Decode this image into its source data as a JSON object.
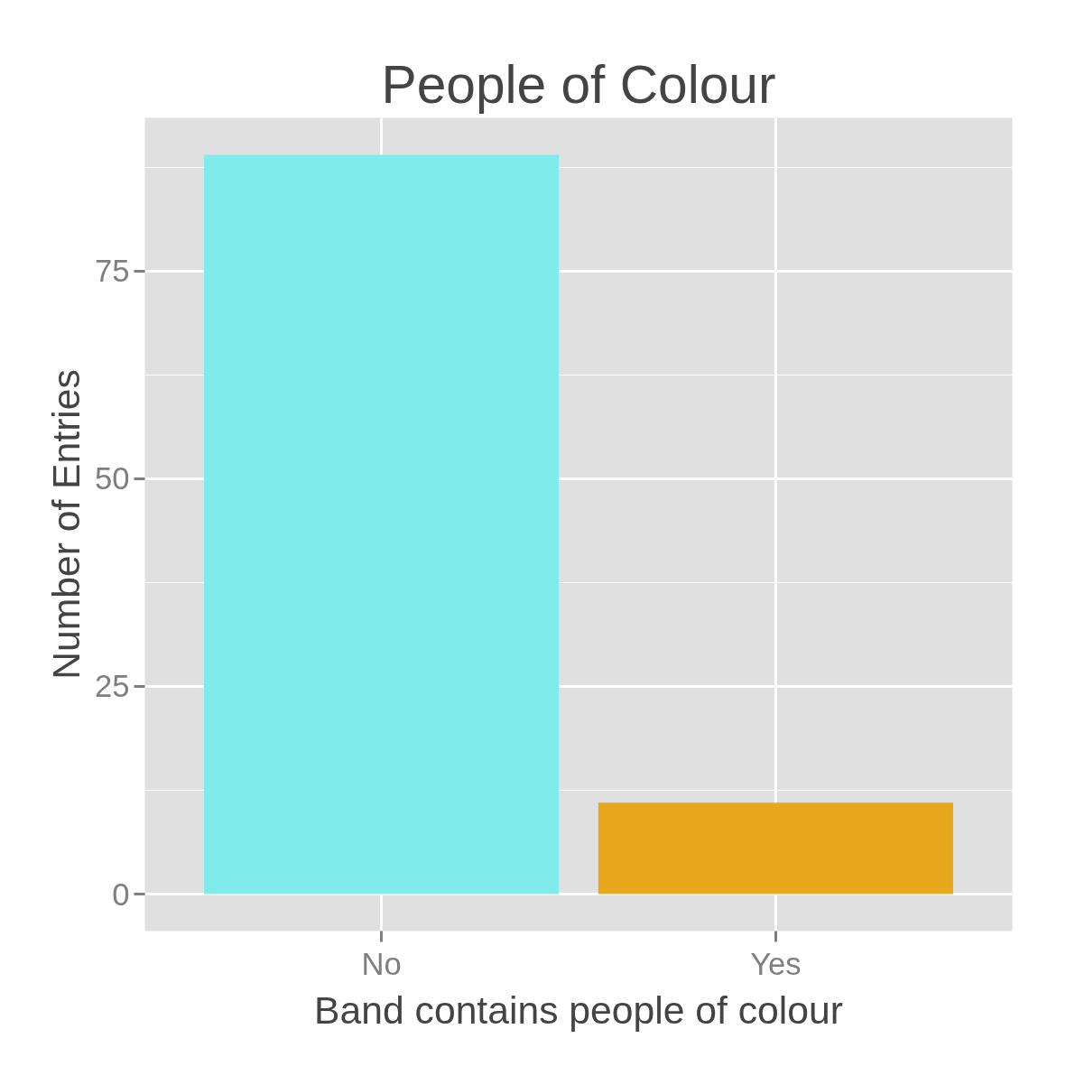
{
  "chart_data": {
    "type": "bar",
    "title": "People of Colour",
    "xlabel": "Band contains people of colour",
    "ylabel": "Number of Entries",
    "categories": [
      "No",
      "Yes"
    ],
    "values": [
      89,
      11
    ],
    "colors": [
      "#80ebeb",
      "#e8a81d"
    ],
    "ylim": [
      -4.45,
      93.45
    ],
    "yticks": [
      0,
      25,
      50,
      75
    ],
    "grid": true
  }
}
